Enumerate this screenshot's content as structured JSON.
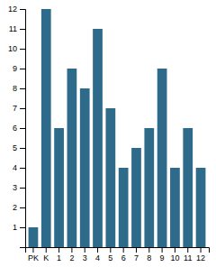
{
  "chart_data": {
    "type": "bar",
    "categories": [
      "PK",
      "K",
      "1",
      "2",
      "3",
      "4",
      "5",
      "6",
      "7",
      "8",
      "9",
      "10",
      "11",
      "12"
    ],
    "values": [
      1,
      12,
      6,
      9,
      8,
      11,
      7,
      4,
      5,
      6,
      9,
      4,
      6,
      4
    ],
    "color": "#2e6b8a",
    "ylim": [
      0,
      12
    ],
    "yticks": [
      1,
      2,
      3,
      4,
      5,
      6,
      7,
      8,
      9,
      10,
      11,
      12
    ],
    "grid": false
  }
}
